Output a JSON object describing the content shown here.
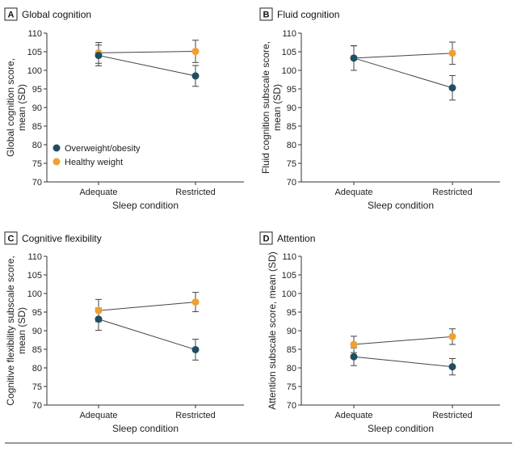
{
  "colors": {
    "overweight": "#1f4e63",
    "healthy": "#f0a030",
    "line": "#444444",
    "error": "#444444",
    "axis": "#333333"
  },
  "legend": [
    {
      "name": "Overweight/obesity",
      "color": "#1f4e63"
    },
    {
      "name": "Healthy weight",
      "color": "#f0a030"
    }
  ],
  "chart_data": [
    {
      "type": "line",
      "letter": "A",
      "title": "Global cognition",
      "ylabel": [
        "Global cognition score,",
        "mean (SD)"
      ],
      "xlabel": "Sleep condition",
      "categories": [
        "Adequate",
        "Restricted"
      ],
      "ylim": [
        70,
        110
      ],
      "yticks": [
        70,
        75,
        80,
        85,
        90,
        95,
        100,
        105,
        110
      ],
      "legend_placement": "bottom-left",
      "series": [
        {
          "name": "Overweight/obesity",
          "values": [
            104.0,
            98.5
          ],
          "sd": [
            2.8,
            2.8
          ]
        },
        {
          "name": "Healthy weight",
          "values": [
            104.7,
            105.1
          ],
          "sd": [
            2.8,
            3.0
          ]
        }
      ]
    },
    {
      "type": "line",
      "letter": "B",
      "title": "Fluid cognition",
      "ylabel": [
        "Fluid cognition subscale score,",
        "mean (SD)"
      ],
      "xlabel": "Sleep condition",
      "categories": [
        "Adequate",
        "Restricted"
      ],
      "ylim": [
        70,
        110
      ],
      "yticks": [
        70,
        75,
        80,
        85,
        90,
        95,
        100,
        105,
        110
      ],
      "series": [
        {
          "name": "Overweight/obesity",
          "values": [
            103.3,
            95.3
          ],
          "sd": [
            3.3,
            3.3
          ]
        },
        {
          "name": "Healthy weight",
          "values": [
            103.3,
            104.6
          ],
          "sd": [
            3.3,
            3.0
          ]
        }
      ]
    },
    {
      "type": "line",
      "letter": "C",
      "title": "Cognitive flexibility",
      "ylabel": [
        "Cognitive flexibility subscale score,",
        "mean (SD)"
      ],
      "xlabel": "Sleep condition",
      "categories": [
        "Adequate",
        "Restricted"
      ],
      "ylim": [
        70,
        110
      ],
      "yticks": [
        70,
        75,
        80,
        85,
        90,
        95,
        100,
        105,
        110
      ],
      "series": [
        {
          "name": "Overweight/obesity",
          "values": [
            93.1,
            84.9
          ],
          "sd": [
            3.0,
            2.8
          ]
        },
        {
          "name": "Healthy weight",
          "values": [
            95.4,
            97.7
          ],
          "sd": [
            3.0,
            2.6
          ]
        }
      ]
    },
    {
      "type": "line",
      "letter": "D",
      "title": "Attention",
      "ylabel": [
        "Attention subscale score, mean (SD)"
      ],
      "xlabel": "Sleep condition",
      "categories": [
        "Adequate",
        "Restricted"
      ],
      "ylim": [
        70,
        110
      ],
      "yticks": [
        70,
        75,
        80,
        85,
        90,
        95,
        100,
        105,
        110
      ],
      "series": [
        {
          "name": "Overweight/obesity",
          "values": [
            83.0,
            80.3
          ],
          "sd": [
            2.4,
            2.2
          ]
        },
        {
          "name": "Healthy weight",
          "values": [
            86.3,
            88.4
          ],
          "sd": [
            2.2,
            2.1
          ]
        }
      ]
    }
  ]
}
